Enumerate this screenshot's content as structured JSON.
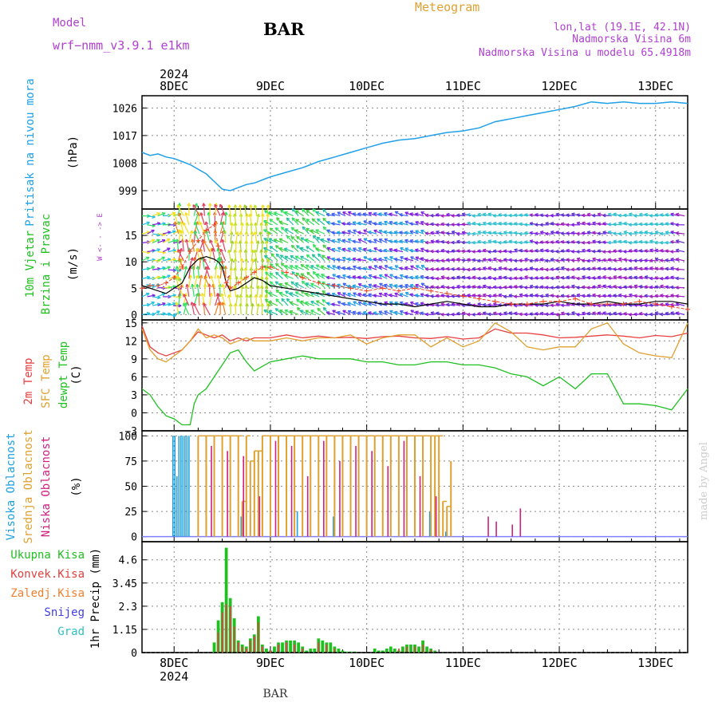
{
  "header": {
    "model_label": "Model",
    "model_name": "wrf−nmm_v3.9.1  e1km",
    "station": "BAR",
    "product": "Meteogram",
    "lonlat": "lon,lat (19.1E, 42.1N)",
    "elevation": "Nadmorska Visina 6m",
    "model_elevation": "Nadmorska Visina u modelu 65.4918m",
    "footer_station": "BAR",
    "watermark": "made by Angel"
  },
  "time_axis": {
    "year": "2024",
    "day_labels": [
      "8DEC",
      "9DEC",
      "10DEC",
      "11DEC",
      "12DEC",
      "13DEC"
    ],
    "start_hour": -8,
    "end_hour": 128
  },
  "colors": {
    "pressure": "#1fa0e8",
    "temp2m": "#e84040",
    "sfc_temp": "#e0a030",
    "dewpt": "#20c020",
    "wind_speed": "#000000",
    "gust": "#f04020",
    "high_cloud": "#20a0e0",
    "mid_cloud": "#e0a030",
    "low_cloud": "#d02080",
    "total_precip": "#20c020",
    "conv_precip": "#e04040",
    "frz_precip": "#f08030",
    "snow": "#4040e0",
    "grad": "#30c0c0",
    "grid": "#888888",
    "title_purple": "#b040d0"
  },
  "chart_data": [
    {
      "type": "line",
      "panel": "pressure",
      "ylabel": [
        "Pritisak na nivou mora",
        "(hPa)"
      ],
      "ylim": [
        993,
        1030
      ],
      "yticks": [
        999,
        1008,
        1017,
        1026
      ],
      "grid": true,
      "series": [
        {
          "x": [
            -8,
            -6,
            -4,
            -2,
            0,
            2,
            4,
            6,
            8,
            10,
            12,
            14,
            16,
            18,
            20,
            22,
            24,
            28,
            32,
            36,
            40,
            44,
            48,
            52,
            56,
            60,
            64,
            68,
            72,
            76,
            80,
            84,
            88,
            92,
            96,
            100,
            104,
            108,
            112,
            116,
            120,
            124,
            128
          ],
          "y": [
            1011.5,
            1010.5,
            1011,
            1010,
            1009.5,
            1008.5,
            1007.5,
            1006,
            1004.5,
            1002,
            999.5,
            999,
            1000,
            1001,
            1001.5,
            1002.5,
            1003.5,
            1005,
            1006.5,
            1008.5,
            1010,
            1011.5,
            1013,
            1014.5,
            1015.5,
            1016,
            1017,
            1018,
            1018.5,
            1019.5,
            1021.5,
            1022.5,
            1023.5,
            1024.5,
            1025.5,
            1026.5,
            1028,
            1027.5,
            1028,
            1027.5,
            1027.5,
            1028,
            1027.5
          ]
        }
      ]
    },
    {
      "type": "line",
      "panel": "wind",
      "ylabel": [
        "10m Vjetar",
        "Brzina i Pravac",
        "(m/s)"
      ],
      "compass": "W <- - -> E",
      "ylim": [
        -1,
        20
      ],
      "yticks": [
        0,
        5,
        10,
        15
      ],
      "grid": true,
      "series": [
        {
          "name": "speed",
          "x": [
            -8,
            -6,
            -4,
            -2,
            0,
            2,
            4,
            6,
            8,
            10,
            11,
            12,
            13,
            14,
            16,
            18,
            20,
            22,
            24,
            28,
            32,
            36,
            40,
            44,
            48,
            52,
            56,
            60,
            64,
            68,
            72,
            76,
            80,
            84,
            88,
            92,
            96,
            100,
            104,
            108,
            112,
            116,
            120,
            124,
            128
          ],
          "y": [
            5.5,
            5,
            4.5,
            4,
            5,
            6,
            9,
            10.5,
            11,
            10.5,
            10,
            9,
            6,
            4.5,
            5,
            6,
            7,
            6.5,
            5.5,
            5,
            4.5,
            4,
            3.5,
            3,
            2.5,
            2,
            2,
            1.5,
            2,
            2.5,
            2,
            1.5,
            1.5,
            2,
            2,
            2,
            2.5,
            2,
            2,
            2.5,
            2,
            2,
            2.5,
            2.5,
            2
          ]
        },
        {
          "name": "gust",
          "x": [
            -8,
            -6,
            -4,
            -2,
            0,
            2,
            4,
            6,
            8,
            10,
            11,
            12,
            13,
            14,
            16,
            18,
            20,
            22,
            24,
            28,
            32,
            36,
            40,
            44,
            48,
            52,
            56,
            60,
            64,
            68,
            72,
            76,
            80,
            84,
            88,
            92,
            96,
            100,
            104,
            108,
            112,
            116,
            120,
            124,
            128
          ],
          "y": [
            5,
            5.5,
            5.5,
            6,
            7,
            9,
            12,
            14,
            16,
            17,
            13,
            10,
            6,
            5,
            6,
            7,
            8,
            9,
            9,
            8,
            7,
            6,
            5.5,
            5,
            4.5,
            5,
            4.5,
            5,
            4.5,
            4,
            3.5,
            3,
            2.5,
            2,
            2,
            2.5,
            2.5,
            3,
            2,
            2,
            2,
            2.5,
            2,
            1.5,
            1
          ]
        }
      ]
    },
    {
      "type": "line",
      "panel": "temperature",
      "ylabel": [
        "2m Temp",
        "SFC Temp",
        "dewpt Temp",
        "(C)"
      ],
      "ylim": [
        -3,
        15.5
      ],
      "yticks": [
        -3,
        0,
        3,
        6,
        9,
        12,
        15
      ],
      "grid": true,
      "series": [
        {
          "name": "2m Temp",
          "x": [
            -8,
            -6,
            -4,
            -2,
            0,
            2,
            4,
            6,
            8,
            10,
            12,
            14,
            16,
            18,
            20,
            24,
            28,
            32,
            36,
            40,
            44,
            48,
            52,
            56,
            60,
            64,
            68,
            72,
            76,
            80,
            84,
            88,
            92,
            96,
            100,
            104,
            108,
            112,
            116,
            120,
            124,
            128
          ],
          "y": [
            14.5,
            11,
            10,
            9.5,
            10,
            10.5,
            12,
            13.5,
            13,
            12.5,
            13,
            12,
            12.5,
            12,
            12.5,
            12.5,
            13,
            12.5,
            12.8,
            12.5,
            12.6,
            12.4,
            12.7,
            12.8,
            12.5,
            12.4,
            12.7,
            12.3,
            12.5,
            14,
            13.3,
            13.3,
            13,
            12.5,
            12.6,
            12.8,
            13,
            12.8,
            12.5,
            12.9,
            12.7,
            13.3
          ]
        },
        {
          "name": "SFC Temp",
          "x": [
            -8,
            -6,
            -4,
            -2,
            0,
            2,
            4,
            6,
            8,
            10,
            12,
            14,
            16,
            18,
            20,
            24,
            28,
            32,
            36,
            40,
            44,
            48,
            52,
            56,
            60,
            64,
            68,
            72,
            76,
            80,
            84,
            88,
            92,
            96,
            100,
            104,
            108,
            112,
            116,
            120,
            124,
            128
          ],
          "y": [
            14,
            10.5,
            9,
            8.5,
            9.5,
            10.5,
            12,
            14,
            12.5,
            13,
            12.5,
            11.5,
            12,
            12.5,
            12,
            12,
            12.5,
            12,
            12.5,
            12.5,
            13,
            11.5,
            12.5,
            13,
            13,
            11,
            12.5,
            11,
            12,
            15,
            13.5,
            11,
            10.5,
            11,
            11,
            14,
            15,
            11.5,
            10,
            9.5,
            9.2,
            15
          ]
        },
        {
          "name": "dewpt Temp",
          "x": [
            -8,
            -6,
            -4,
            -2,
            0,
            2,
            4,
            5,
            6,
            8,
            10,
            12,
            14,
            16,
            18,
            20,
            24,
            28,
            32,
            36,
            40,
            44,
            48,
            52,
            56,
            60,
            64,
            68,
            72,
            76,
            80,
            84,
            88,
            92,
            96,
            100,
            104,
            108,
            112,
            116,
            120,
            124,
            128
          ],
          "y": [
            4,
            3,
            1,
            -0.5,
            -1,
            -2,
            -2,
            1.5,
            3,
            4,
            6,
            8,
            10,
            10.5,
            8.5,
            7,
            8.5,
            9,
            9.5,
            9,
            9,
            9,
            8.5,
            8.5,
            8,
            8,
            8.5,
            8.5,
            8,
            8,
            7.5,
            6.5,
            6,
            4.5,
            6,
            4,
            6.5,
            6.5,
            1.5,
            1.5,
            1.2,
            0.5,
            4
          ]
        }
      ]
    },
    {
      "type": "bar",
      "panel": "clouds",
      "ylabel": [
        "Visoka Oblacnost",
        "Srednja Oblacnost",
        "Niska Oblacnost",
        "(%)"
      ],
      "ylim": [
        -5,
        105
      ],
      "yticks": [
        0,
        25,
        50,
        75,
        100
      ],
      "grid": true,
      "series": [
        {
          "name": "Visoka Oblacnost",
          "x": [
            0,
            0.5,
            1,
            1.5,
            2,
            2.5,
            3,
            3.5,
            4,
            17,
            31,
            40,
            64,
            68
          ],
          "values": [
            100,
            100,
            60,
            100,
            100,
            100,
            100,
            100,
            100,
            20,
            25,
            20,
            25,
            5
          ]
        },
        {
          "name": "Srednja Oblacnost",
          "x": [
            6,
            8,
            10,
            12,
            14,
            16,
            17,
            18,
            19,
            20,
            21,
            22,
            24,
            26,
            28,
            30,
            32,
            34,
            36,
            38,
            40,
            42,
            44,
            46,
            48,
            50,
            52,
            54,
            56,
            58,
            60,
            62,
            64,
            65,
            66,
            67,
            68,
            69
          ],
          "values": [
            100,
            100,
            100,
            100,
            100,
            100,
            35,
            100,
            75,
            85,
            85,
            100,
            100,
            100,
            100,
            100,
            100,
            100,
            100,
            100,
            100,
            100,
            100,
            100,
            100,
            100,
            100,
            100,
            100,
            100,
            100,
            100,
            100,
            100,
            100,
            35,
            30,
            75
          ]
        },
        {
          "name": "Niska Oblacnost",
          "x": [
            9,
            13,
            17,
            21,
            25,
            29,
            33,
            37,
            41,
            45,
            49,
            53,
            57,
            61,
            65,
            78,
            80,
            84,
            86
          ],
          "values": [
            90,
            85,
            80,
            40,
            95,
            90,
            60,
            95,
            75,
            90,
            85,
            70,
            95,
            60,
            40,
            20,
            15,
            12,
            28
          ]
        }
      ]
    },
    {
      "type": "bar",
      "panel": "precip",
      "ylabel": [
        "1hr Precip (mm)"
      ],
      "legend": [
        "Ukupna Kisa",
        "Konvek.Kisa",
        "Zaledj.Kisa",
        "Snijeg",
        "Grad"
      ],
      "ylim": [
        0,
        5.5
      ],
      "yticks": [
        0,
        1.15,
        2.3,
        3.45,
        4.6
      ],
      "grid": true,
      "series": [
        {
          "name": "Ukupna Kisa",
          "x": [
            10,
            11,
            12,
            13,
            14,
            15,
            16,
            17,
            18,
            19,
            20,
            21,
            22,
            23,
            24,
            25,
            26,
            27,
            28,
            29,
            30,
            31,
            32,
            33,
            34,
            35,
            36,
            37,
            38,
            39,
            40,
            41,
            42,
            43,
            44,
            45,
            50,
            51,
            52,
            53,
            54,
            55,
            56,
            57,
            58,
            59,
            60,
            61,
            62,
            63,
            64,
            65
          ],
          "values": [
            0.5,
            1.6,
            2.5,
            5.2,
            2.7,
            1.7,
            0.6,
            0.4,
            0.3,
            0.7,
            0.9,
            1.8,
            0.4,
            0.2,
            0.1,
            0.3,
            0.5,
            0.5,
            0.6,
            0.6,
            0.6,
            0.5,
            0.3,
            0.1,
            0.2,
            0.2,
            0.7,
            0.6,
            0.5,
            0.5,
            0.3,
            0.2,
            0.1,
            0.05,
            0.05,
            0.05,
            0.2,
            0.1,
            0.1,
            0.2,
            0.3,
            0.2,
            0.1,
            0.3,
            0.4,
            0.4,
            0.4,
            0.3,
            0.6,
            0.3,
            0.2,
            0.1
          ]
        },
        {
          "name": "Konvek.Kisa",
          "x": [
            11,
            12,
            13,
            14,
            15,
            16,
            17,
            18,
            19,
            20,
            21,
            22,
            24,
            26,
            28,
            30,
            32,
            36,
            38,
            40,
            56,
            58,
            60,
            62,
            64
          ],
          "values": [
            1.0,
            2.0,
            2.4,
            2.3,
            1.3,
            0.5,
            0.3,
            0.2,
            0.6,
            0.8,
            1.5,
            0.3,
            0.1,
            0.4,
            0.5,
            0.4,
            0.2,
            0.5,
            0.4,
            0.2,
            0.2,
            0.3,
            0.3,
            0.4,
            0.15
          ]
        }
      ]
    }
  ]
}
